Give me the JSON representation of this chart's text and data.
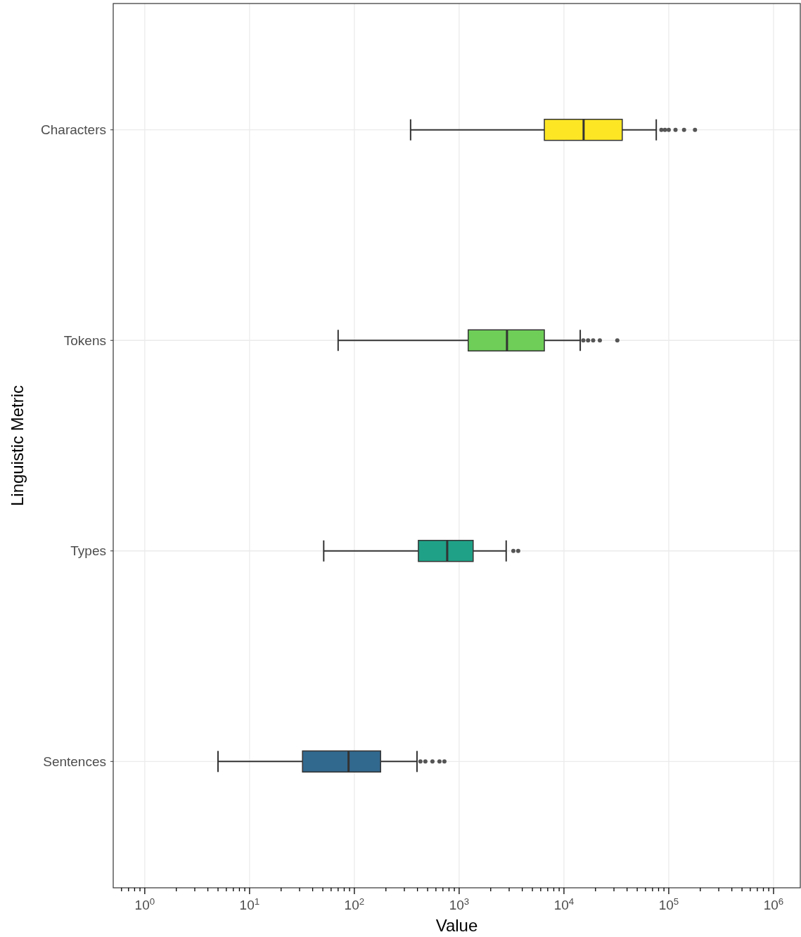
{
  "chart_data": {
    "type": "box",
    "orientation": "horizontal",
    "xlabel": "Value",
    "ylabel": "Linguistic Metric",
    "log": "x",
    "grid": true,
    "categories": [
      "Characters",
      "Tokens",
      "Types",
      "Sentences"
    ],
    "colors": [
      "#fde725",
      "#6ece58",
      "#1fa187",
      "#31688e"
    ],
    "xlim": [
      0.5,
      1800000
    ],
    "xticks": [
      {
        "value": 0.6,
        "label": null
      },
      {
        "value": 0.7,
        "label": null
      },
      {
        "value": 0.8,
        "label": null
      },
      {
        "value": 0.9,
        "label": null
      },
      {
        "value": 1,
        "label": "10$^{0}$"
      },
      {
        "value": 2,
        "label": null
      },
      {
        "value": 3,
        "label": null
      },
      {
        "value": 4,
        "label": null
      },
      {
        "value": 5,
        "label": null
      },
      {
        "value": 6,
        "label": null
      },
      {
        "value": 7,
        "label": null
      },
      {
        "value": 8,
        "label": null
      },
      {
        "value": 9,
        "label": null
      },
      {
        "value": 10,
        "label": "10$^{1}$"
      },
      {
        "value": 20,
        "label": null
      },
      {
        "value": 30,
        "label": null
      },
      {
        "value": 40,
        "label": null
      },
      {
        "value": 50,
        "label": null
      },
      {
        "value": 60,
        "label": null
      },
      {
        "value": 70,
        "label": null
      },
      {
        "value": 80,
        "label": null
      },
      {
        "value": 90,
        "label": null
      },
      {
        "value": 100,
        "label": "10$^{2}$"
      },
      {
        "value": 200,
        "label": null
      },
      {
        "value": 300,
        "label": null
      },
      {
        "value": 400,
        "label": null
      },
      {
        "value": 500,
        "label": null
      },
      {
        "value": 600,
        "label": null
      },
      {
        "value": 700,
        "label": null
      },
      {
        "value": 800,
        "label": null
      },
      {
        "value": 900,
        "label": null
      },
      {
        "value": 1000,
        "label": "10$^{3}$"
      },
      {
        "value": 2000,
        "label": null
      },
      {
        "value": 3000,
        "label": null
      },
      {
        "value": 4000,
        "label": null
      },
      {
        "value": 5000,
        "label": null
      },
      {
        "value": 6000,
        "label": null
      },
      {
        "value": 7000,
        "label": null
      },
      {
        "value": 8000,
        "label": null
      },
      {
        "value": 9000,
        "label": null
      },
      {
        "value": 10000,
        "label": "10$^{4}$"
      },
      {
        "value": 20000,
        "label": null
      },
      {
        "value": 30000,
        "label": null
      },
      {
        "value": 40000,
        "label": null
      },
      {
        "value": 50000,
        "label": null
      },
      {
        "value": 60000,
        "label": null
      },
      {
        "value": 70000,
        "label": null
      },
      {
        "value": 80000,
        "label": null
      },
      {
        "value": 90000,
        "label": null
      },
      {
        "value": 100000,
        "label": "10$^{5}$"
      },
      {
        "value": 200000,
        "label": null
      },
      {
        "value": 300000,
        "label": null
      },
      {
        "value": 400000,
        "label": null
      },
      {
        "value": 500000,
        "label": null
      },
      {
        "value": 600000,
        "label": null
      },
      {
        "value": 700000,
        "label": null
      },
      {
        "value": 800000,
        "label": null
      },
      {
        "value": 900000,
        "label": null
      },
      {
        "value": 1000000,
        "label": "10$^{6}$"
      }
    ],
    "boxes": [
      {
        "low": 344,
        "q1": 6500,
        "median": 15400,
        "q3": 36000,
        "high": 76000,
        "outliers": [
          85000,
          92000,
          100000,
          116000,
          140000,
          178000
        ]
      },
      {
        "low": 70,
        "q1": 1220,
        "median": 2860,
        "q3": 6500,
        "high": 14300,
        "outliers": [
          15300,
          17000,
          19000,
          22000,
          32300
        ]
      },
      {
        "low": 51,
        "q1": 408,
        "median": 769,
        "q3": 1360,
        "high": 2810,
        "outliers": [
          3290,
          3660
        ]
      },
      {
        "low": 5,
        "q1": 32,
        "median": 88,
        "q3": 178,
        "high": 396,
        "outliers": [
          427,
          476,
          556,
          649,
          723
        ]
      }
    ]
  }
}
